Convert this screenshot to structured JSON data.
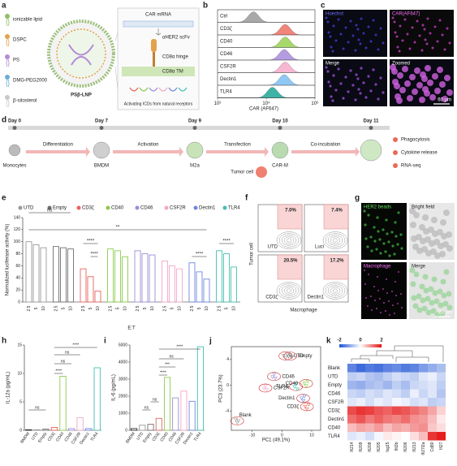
{
  "panel_a": {
    "label": "a",
    "legend": [
      "ionizable lipid",
      "DSPC",
      "PS",
      "DMG-PEG2000",
      "β-sitosterol"
    ],
    "legend_colors": [
      "#8fbf6a",
      "#e3a24a",
      "#b58ad6",
      "#6aaed6",
      "#c9c9c9"
    ],
    "particle": "PSβ-LNP",
    "mrna": "CAR mRNA",
    "parts": [
      "αHER2 scFv",
      "CD8α hinge",
      "CD8α TM"
    ],
    "caption": "Activating ICDs from natural receptors"
  },
  "panel_b": {
    "label": "b",
    "type": "histogram",
    "rows": [
      "Ctrl",
      "CD3ζ",
      "CD40",
      "CD46",
      "CSF2R",
      "Dectin1",
      "TLR4"
    ],
    "colors": [
      "#a9a9a9",
      "#f0857a",
      "#a6d96a",
      "#b59be0",
      "#f7b6d2",
      "#90c8f5",
      "#3fb3a6"
    ],
    "peaks": [
      3000,
      60000,
      60000,
      55000,
      60000,
      55000,
      18000
    ],
    "xlabel": "CAR (AF647)",
    "xlim": [
      100,
      1000000
    ],
    "xscale": "log",
    "xticks": [
      {
        "value": 100,
        "label": "10²"
      },
      {
        "value": 10000,
        "label": "10⁴"
      },
      {
        "value": 1000000,
        "label": "10⁶"
      }
    ]
  },
  "panel_c": {
    "label": "c",
    "images": [
      "Hoechst",
      "CAR(AF647)",
      "Merge",
      "Zoomed"
    ],
    "scale": "60 μm"
  },
  "panel_d": {
    "label": "d",
    "days": [
      "Day 0",
      "Day 7",
      "Day 9",
      "Day 10",
      "Day 11"
    ],
    "cells": [
      "Monocytes",
      "BMDM",
      "M2a",
      "CAR-M"
    ],
    "steps": [
      "Differentiation",
      "Activation",
      "Transfection",
      "Co-incubation"
    ],
    "tumor": "Tumor cell",
    "outcomes": [
      "Phagocytosis",
      "Cytokine release",
      "RNA-seq"
    ]
  },
  "panel_e": {
    "label": "e",
    "type": "bar",
    "ylabel": "Normalized luciferase activity (%)",
    "xlabel": "E:T",
    "ratios": [
      "2.5",
      "5",
      "10"
    ],
    "ylim": [
      0,
      140
    ],
    "yticks": [
      0,
      20,
      40,
      60,
      80,
      100,
      120,
      140
    ],
    "groups": [
      {
        "name": "UTD",
        "color": "#9a9a9a",
        "values": [
          100,
          95,
          90
        ]
      },
      {
        "name": "Empty",
        "color": "#6e6e6e",
        "values": [
          92,
          90,
          88
        ]
      },
      {
        "name": "CD3ζ",
        "color": "#e8625c",
        "values": [
          55,
          42,
          18
        ]
      },
      {
        "name": "CD40",
        "color": "#8ccc4a",
        "values": [
          88,
          85,
          75
        ]
      },
      {
        "name": "CD46",
        "color": "#9b8fd6",
        "values": [
          85,
          80,
          78
        ]
      },
      {
        "name": "CSF2R",
        "color": "#f4a6c7",
        "values": [
          68,
          60,
          55
        ]
      },
      {
        "name": "Dectin1",
        "color": "#6f86e0",
        "values": [
          65,
          50,
          38
        ]
      },
      {
        "name": "TLR4",
        "color": "#45bfb1",
        "values": [
          85,
          80,
          58
        ]
      }
    ],
    "significance": [
      "ns",
      "****",
      "****",
      "**",
      "****",
      "****"
    ]
  },
  "panel_f": {
    "label": "f",
    "gates": [
      "7.0%",
      "7.4%",
      "20.5%",
      "17.2%"
    ],
    "names": [
      "UTD",
      "Luci",
      "CD3ζ",
      "Dectin1"
    ],
    "ylabel": "Tumor cell",
    "xlabel": "Macrophage"
  },
  "panel_g": {
    "label": "g",
    "images": [
      "HER2 beads",
      "Bright field",
      "Macrophage",
      "Merge"
    ],
    "scale": "20 μm"
  },
  "panel_h": {
    "label": "h",
    "type": "bar",
    "ylabel": "IL-12a (pg/mL)",
    "categories": [
      "BMDM",
      "UTD",
      "Empty",
      "CD3ζ",
      "CD40",
      "CD46",
      "CSF2R",
      "Dectin1",
      "TLR4"
    ],
    "colors": [
      "#333333",
      "#9a9a9a",
      "#6e6e6e",
      "#e8625c",
      "#8ccc4a",
      "#9b8fd6",
      "#f4a6c7",
      "#6f86e0",
      "#45bfb1"
    ],
    "values": [
      0.1,
      0.1,
      0.2,
      0.5,
      9.5,
      0.3,
      2.2,
      0.3,
      11
    ],
    "ylim": [
      0,
      15
    ],
    "yticks": [
      0,
      5,
      10,
      15
    ],
    "significance": [
      "ns",
      "****",
      "ns",
      "ns",
      "****"
    ]
  },
  "panel_i": {
    "label": "i",
    "type": "bar",
    "ylabel": "IL-6 (pg/mL)",
    "categories": [
      "BMDM",
      "UTD",
      "Empty",
      "CD3ζ",
      "CD40",
      "CD46",
      "CSF2R",
      "Dectin1",
      "TLR4"
    ],
    "colors": [
      "#333333",
      "#9a9a9a",
      "#6e6e6e",
      "#e8625c",
      "#8ccc4a",
      "#9b8fd6",
      "#f4a6c7",
      "#6f86e0",
      "#45bfb1"
    ],
    "values": [
      100,
      300,
      350,
      700,
      3100,
      1900,
      2300,
      1700,
      4900
    ],
    "ylim": [
      0,
      5000
    ],
    "yticks": [
      0,
      1000,
      2000,
      3000,
      4000,
      5000
    ],
    "significance": [
      "ns",
      "ns",
      "****",
      "***",
      "ns",
      "****"
    ]
  },
  "panel_j": {
    "label": "j",
    "type": "scatter",
    "xlabel": "PC1 (49.1%)",
    "ylabel": "PC3 (23.7%)",
    "xlim": [
      -17,
      13
    ],
    "ylim": [
      -7,
      6
    ],
    "xticks": [
      -10,
      0,
      10
    ],
    "yticks": [
      -4,
      0,
      4
    ],
    "series": [
      {
        "name": "Blank",
        "color": "#9a9a9a",
        "x": [
          -15.5,
          -15,
          -14.6
        ],
        "y": [
          -5.3,
          -5.8,
          -5.5
        ]
      },
      {
        "name": "UTD",
        "color": "#9a9a9a",
        "x": [
          0.5,
          1.2,
          1.8
        ],
        "y": [
          4.6,
          4.3,
          4.8
        ]
      },
      {
        "name": "Empty",
        "color": "#6e6e6e",
        "x": [
          2.2,
          2.8,
          3.3
        ],
        "y": [
          4.5,
          4.7,
          4.4
        ]
      },
      {
        "name": "CD46",
        "color": "#9b8fd6",
        "x": [
          -3.2,
          -2.6,
          -2.2
        ],
        "y": [
          1.3,
          1.7,
          1.1
        ]
      },
      {
        "name": "CSF2R",
        "color": "#f4a6c7",
        "x": [
          -6,
          -5.5,
          -5.1
        ],
        "y": [
          -0.5,
          -0.1,
          -0.7
        ]
      },
      {
        "name": "TLR4",
        "color": "#45bfb1",
        "x": [
          4.2,
          4.8,
          5.2
        ],
        "y": [
          -0.2,
          0.2,
          -0.6
        ]
      },
      {
        "name": "CD40",
        "color": "#8ccc4a",
        "x": [
          7.5,
          8.2,
          8.7
        ],
        "y": [
          0.3,
          -0.1,
          0.6
        ]
      },
      {
        "name": "Dectin1",
        "color": "#6f86e0",
        "x": [
          6.6,
          7.2,
          7.6
        ],
        "y": [
          -2,
          -2.4,
          -1.7
        ]
      },
      {
        "name": "CD3ζ",
        "color": "#e8625c",
        "x": [
          7.8,
          8.4,
          9
        ],
        "y": [
          -3.3,
          -3.7,
          -3
        ]
      }
    ]
  },
  "panel_k": {
    "label": "k",
    "type": "heatmap",
    "rows": [
      "Blank",
      "UTD",
      "Empty",
      "CD46",
      "CSF2R",
      "CD3ζ",
      "Dectin1",
      "CD40",
      "TLR4"
    ],
    "columns": [
      "Ifi214",
      "Ifi209",
      "Ifi208",
      "Ifi205",
      "Isg15",
      "Ifit3b",
      "Ifi206",
      "Ifi213",
      "Ifi27l2a",
      "Cd80",
      "Ifi27"
    ],
    "colorbar": [
      -2,
      0,
      2
    ],
    "values": [
      [
        -1.5,
        -1.8,
        -1.6,
        -1.7,
        -1.5,
        -1.4,
        -1.6,
        -1.5,
        -1.2,
        -1.0,
        -0.8
      ],
      [
        -0.6,
        -0.5,
        -0.7,
        -0.8,
        -0.6,
        -0.4,
        -0.5,
        -0.6,
        -0.3,
        -0.2,
        -0.5
      ],
      [
        -0.9,
        -1.0,
        -0.8,
        -0.7,
        -0.9,
        -0.6,
        -0.8,
        -0.5,
        -0.4,
        -0.3,
        -0.6
      ],
      [
        -0.5,
        -0.6,
        -0.4,
        -0.5,
        -0.3,
        -0.4,
        -0.6,
        -0.2,
        -0.5,
        -0.3,
        -0.7
      ],
      [
        -0.3,
        -0.2,
        -0.4,
        -0.2,
        -0.3,
        -0.1,
        -0.2,
        -0.4,
        -0.3,
        -0.6,
        -0.5
      ],
      [
        1.6,
        1.8,
        1.7,
        1.5,
        1.4,
        1.6,
        1.5,
        1.3,
        1.1,
        0.8,
        0.4
      ],
      [
        1.3,
        1.5,
        1.2,
        1.4,
        1.2,
        1.1,
        1.3,
        1.0,
        0.9,
        0.6,
        0.2
      ],
      [
        0.6,
        0.8,
        0.7,
        0.9,
        0.6,
        0.8,
        0.7,
        0.9,
        1.0,
        0.5,
        0.3
      ],
      [
        -0.3,
        -0.2,
        -0.4,
        -0.1,
        0.2,
        0.1,
        0.0,
        0.3,
        0.6,
        1.8,
        2.0
      ]
    ]
  }
}
